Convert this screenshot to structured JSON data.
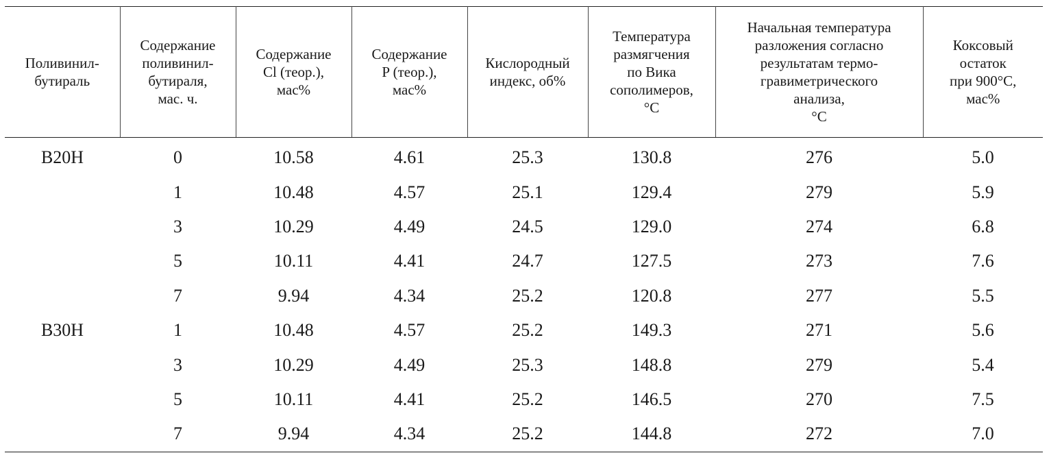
{
  "table": {
    "headers": [
      "Поливинил-\nбутираль",
      "Содержание\nполивинил-\nбутираля,\nмас. ч.",
      "Содержание\nCl (теор.),\nмас%",
      "Содержание\nP (теор.),\nмас%",
      "Кислородный\nиндекс, об%",
      "Температура\nразмягчения\nпо Вика\nсополимеров,\n°C",
      "Начальная температура\nразложения согласно\nрезультатам термо-\nгравиметрического\nанализа,\n°C",
      "Коксовый\nостаток\nпри 900°C,\nмас%"
    ],
    "rows": [
      [
        "B20H",
        "0",
        "10.58",
        "4.61",
        "25.3",
        "130.8",
        "276",
        "5.0"
      ],
      [
        "",
        "1",
        "10.48",
        "4.57",
        "25.1",
        "129.4",
        "279",
        "5.9"
      ],
      [
        "",
        "3",
        "10.29",
        "4.49",
        "24.5",
        "129.0",
        "274",
        "6.8"
      ],
      [
        "",
        "5",
        "10.11",
        "4.41",
        "24.7",
        "127.5",
        "273",
        "7.6"
      ],
      [
        "",
        "7",
        "9.94",
        "4.34",
        "25.2",
        "120.8",
        "277",
        "5.5"
      ],
      [
        "B30H",
        "1",
        "10.48",
        "4.57",
        "25.2",
        "149.3",
        "271",
        "5.6"
      ],
      [
        "",
        "3",
        "10.29",
        "4.49",
        "25.3",
        "148.8",
        "279",
        "5.4"
      ],
      [
        "",
        "5",
        "10.11",
        "4.41",
        "25.2",
        "146.5",
        "270",
        "7.5"
      ],
      [
        "",
        "7",
        "9.94",
        "4.34",
        "25.2",
        "144.8",
        "272",
        "7.0"
      ]
    ]
  }
}
